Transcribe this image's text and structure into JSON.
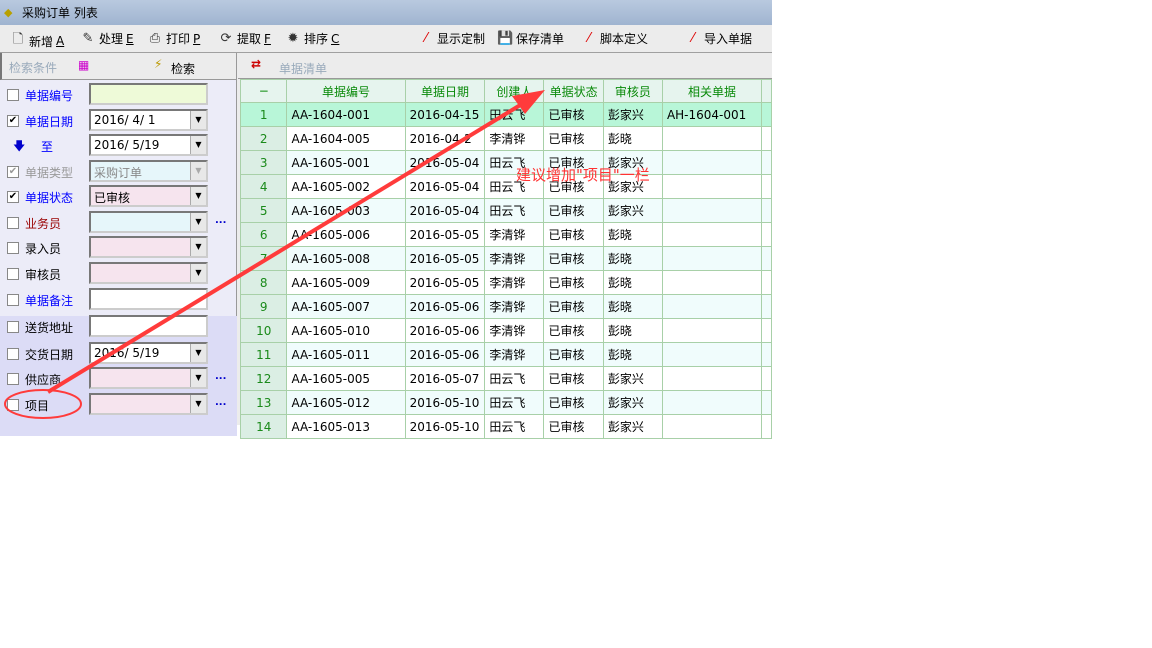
{
  "window": {
    "title": "采购订单 列表"
  },
  "toolbar": {
    "items": [
      {
        "label": "新增",
        "key": "A",
        "icon": "new-doc-icon"
      },
      {
        "label": "处理",
        "key": "E",
        "icon": "process-icon"
      },
      {
        "label": "打印",
        "key": "P",
        "icon": "printer-icon"
      },
      {
        "label": "提取",
        "key": "F",
        "icon": "extract-icon"
      },
      {
        "label": "排序",
        "key": "C",
        "icon": "sort-icon"
      },
      {
        "label": "显示定制",
        "icon": "wand-icon"
      },
      {
        "label": "保存清单",
        "icon": "save-icon"
      },
      {
        "label": "脚本定义",
        "icon": "wand-icon"
      },
      {
        "label": "导入单据",
        "icon": "wand-icon"
      }
    ]
  },
  "filter": {
    "header": "检索条件",
    "search_label": "检索",
    "fields": [
      {
        "label": "单据编号",
        "checked": false,
        "value": "",
        "color": "#0000ff"
      },
      {
        "label": "单据日期",
        "checked": true,
        "value": "2016/  4/  1",
        "color": "#0000ff"
      },
      {
        "label": "至",
        "value": "2016/  5/19",
        "color": "#0000ff"
      },
      {
        "label": "单据类型",
        "checked": true,
        "value": "采购订单",
        "color": "#999999",
        "disabled": true
      },
      {
        "label": "单据状态",
        "checked": true,
        "value": "已审核",
        "color": "#0000ff"
      },
      {
        "label": "业务员",
        "checked": false,
        "value": "",
        "color": "#990000"
      },
      {
        "label": "录入员",
        "checked": false,
        "value": "",
        "color": "#000000"
      },
      {
        "label": "审核员",
        "checked": false,
        "value": "",
        "color": "#000000"
      },
      {
        "label": "单据备注",
        "checked": false,
        "value": "",
        "color": "#0000ff"
      },
      {
        "label": "送货地址",
        "checked": false,
        "value": "",
        "color": "#000000"
      },
      {
        "label": "交货日期",
        "checked": false,
        "value": "2016/  5/19",
        "color": "#000000"
      },
      {
        "label": "供应商",
        "checked": false,
        "value": "",
        "color": "#000000"
      },
      {
        "label": "项目",
        "checked": false,
        "value": "",
        "color": "#000000"
      }
    ],
    "more": "..."
  },
  "list": {
    "header": "单据清单",
    "corner": "−",
    "columns": [
      "单据编号",
      "单据日期",
      "创建人",
      "单据状态",
      "审核员",
      "相关单据"
    ],
    "rows": [
      [
        "1",
        "AA-1604-001",
        "2016-04-15",
        "田云飞",
        "已审核",
        "彭家兴",
        "AH-1604-001"
      ],
      [
        "2",
        "AA-1604-005",
        "2016-04-2",
        "李清铧",
        "已审核",
        "彭晓",
        ""
      ],
      [
        "3",
        "AA-1605-001",
        "2016-05-04",
        "田云飞",
        "已审核",
        "彭家兴",
        ""
      ],
      [
        "4",
        "AA-1605-002",
        "2016-05-04",
        "田云飞",
        "已审核",
        "彭家兴",
        ""
      ],
      [
        "5",
        "AA-1605-003",
        "2016-05-04",
        "田云飞",
        "已审核",
        "彭家兴",
        ""
      ],
      [
        "6",
        "AA-1605-006",
        "2016-05-05",
        "李清铧",
        "已审核",
        "彭晓",
        ""
      ],
      [
        "7",
        "AA-1605-008",
        "2016-05-05",
        "李清铧",
        "已审核",
        "彭晓",
        ""
      ],
      [
        "8",
        "AA-1605-009",
        "2016-05-05",
        "李清铧",
        "已审核",
        "彭晓",
        ""
      ],
      [
        "9",
        "AA-1605-007",
        "2016-05-06",
        "李清铧",
        "已审核",
        "彭晓",
        ""
      ],
      [
        "10",
        "AA-1605-010",
        "2016-05-06",
        "李清铧",
        "已审核",
        "彭晓",
        ""
      ],
      [
        "11",
        "AA-1605-011",
        "2016-05-06",
        "李清铧",
        "已审核",
        "彭晓",
        ""
      ],
      [
        "12",
        "AA-1605-005",
        "2016-05-07",
        "田云飞",
        "已审核",
        "彭家兴",
        ""
      ],
      [
        "13",
        "AA-1605-012",
        "2016-05-10",
        "田云飞",
        "已审核",
        "彭家兴",
        ""
      ],
      [
        "14",
        "AA-1605-013",
        "2016-05-10",
        "田云飞",
        "已审核",
        "彭家兴",
        ""
      ]
    ]
  },
  "annotation": {
    "text": "建议增加\"项目\"一栏",
    "color": "#ff3333"
  }
}
